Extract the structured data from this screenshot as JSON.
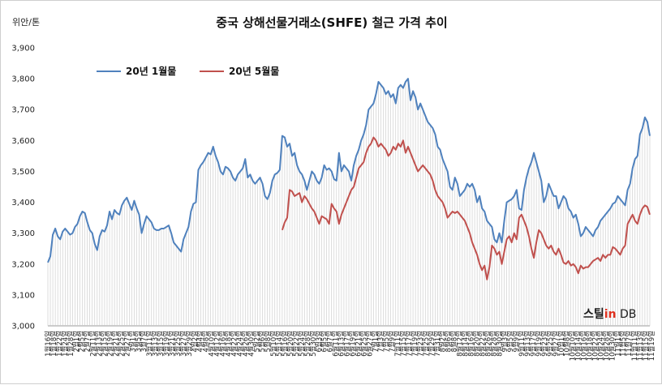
{
  "chart_data": {
    "type": "line",
    "title": "중국 상해선물거래소(SHFE)  철근 가격 추이",
    "unit_label": "위안/톤",
    "ylim": [
      3000,
      3900
    ],
    "yticks": [
      "3,000",
      "3,100",
      "3,200",
      "3,300",
      "3,400",
      "3,500",
      "3,600",
      "3,700",
      "3,800",
      "3,900"
    ],
    "ytick_values": [
      3000,
      3100,
      3200,
      3300,
      3400,
      3500,
      3600,
      3700,
      3800,
      3900
    ],
    "legend_position": "top-left",
    "x_suffix": "일",
    "x_labels": [
      "1월16",
      "1월18",
      "1월22",
      "1월24",
      "1월28",
      "2월1",
      "2월5",
      "2월7",
      "2월11",
      "2월13",
      "2월15",
      "2월19",
      "2월21",
      "2월25",
      "2월27",
      "3월1",
      "3월5",
      "3월7",
      "3월11",
      "3월13",
      "3월15",
      "3월19",
      "3월21",
      "3월25",
      "3월27",
      "3월29",
      "4월2",
      "4월4",
      "4월8",
      "4월10",
      "4월12",
      "4월16",
      "4월18",
      "4월22",
      "4월24",
      "4월26",
      "4월30",
      "5월2",
      "5월6",
      "5월8",
      "5월10",
      "5월14",
      "5월16",
      "5월20",
      "5월22",
      "5월24",
      "5월28",
      "5월30",
      "6월3",
      "6월5",
      "6월7",
      "6월11",
      "6월13",
      "6월17",
      "6월19",
      "6월21",
      "6월25",
      "6월27",
      "7월1",
      "7월3",
      "7월5",
      "7월9",
      "7월11",
      "7월15",
      "7월17",
      "7월19",
      "7월23",
      "7월25",
      "7월29",
      "7월31",
      "8월2",
      "8월6",
      "8월8",
      "8월12",
      "8월14",
      "8월16",
      "8월20",
      "8월22",
      "8월26",
      "8월28",
      "8월30",
      "9월3",
      "9월5",
      "9월9",
      "9월11",
      "9월13",
      "9월17",
      "9월19",
      "9월23",
      "9월25",
      "9월27",
      "10월1",
      "10월8",
      "10월10",
      "10월14",
      "10월16",
      "10월18",
      "10월22",
      "10월24",
      "10월28",
      "10월30",
      "11월1",
      "11월5",
      "11월7",
      "11월11",
      "11월13",
      "11월15",
      "11월19"
    ],
    "x_label_count_shown": 108,
    "series": [
      {
        "name": "20년 1월물",
        "color": "#4f81bd",
        "values": [
          3205,
          3225,
          3295,
          3315,
          3290,
          3280,
          3305,
          3315,
          3305,
          3295,
          3300,
          3320,
          3330,
          3355,
          3370,
          3365,
          3335,
          3310,
          3300,
          3265,
          3245,
          3290,
          3310,
          3305,
          3325,
          3370,
          3345,
          3375,
          3365,
          3360,
          3390,
          3405,
          3415,
          3395,
          3375,
          3405,
          3380,
          3360,
          3300,
          3330,
          3355,
          3345,
          3335,
          3315,
          3310,
          3310,
          3315,
          3315,
          3320,
          3325,
          3300,
          3270,
          3260,
          3250,
          3240,
          3280,
          3300,
          3320,
          3370,
          3395,
          3400,
          3505,
          3520,
          3530,
          3545,
          3560,
          3555,
          3580,
          3550,
          3530,
          3500,
          3490,
          3515,
          3510,
          3500,
          3480,
          3470,
          3490,
          3500,
          3510,
          3540,
          3480,
          3490,
          3470,
          3460,
          3470,
          3480,
          3460,
          3420,
          3410,
          3430,
          3470,
          3490,
          3495,
          3505,
          3615,
          3610,
          3580,
          3590,
          3550,
          3560,
          3520,
          3500,
          3490,
          3470,
          3440,
          3470,
          3500,
          3490,
          3470,
          3460,
          3480,
          3520,
          3505,
          3510,
          3500,
          3475,
          3470,
          3560,
          3500,
          3520,
          3510,
          3500,
          3470,
          3520,
          3550,
          3570,
          3600,
          3620,
          3650,
          3700,
          3710,
          3720,
          3750,
          3790,
          3780,
          3770,
          3750,
          3760,
          3740,
          3750,
          3720,
          3770,
          3780,
          3770,
          3790,
          3800,
          3730,
          3760,
          3740,
          3700,
          3720,
          3700,
          3680,
          3660,
          3650,
          3640,
          3620,
          3580,
          3570,
          3540,
          3520,
          3500,
          3450,
          3440,
          3480,
          3460,
          3420,
          3430,
          3440,
          3460,
          3450,
          3460,
          3440,
          3400,
          3420,
          3380,
          3370,
          3340,
          3330,
          3320,
          3280,
          3270,
          3300,
          3270,
          3340,
          3400,
          3405,
          3410,
          3420,
          3440,
          3380,
          3375,
          3440,
          3480,
          3510,
          3530,
          3560,
          3530,
          3500,
          3470,
          3400,
          3420,
          3460,
          3440,
          3420,
          3420,
          3380,
          3400,
          3420,
          3410,
          3380,
          3370,
          3350,
          3360,
          3330,
          3290,
          3300,
          3320,
          3310,
          3300,
          3290,
          3310,
          3320,
          3340,
          3350,
          3360,
          3370,
          3380,
          3395,
          3400,
          3420,
          3410,
          3400,
          3390,
          3440,
          3460,
          3510,
          3540,
          3550,
          3620,
          3640,
          3675,
          3660,
          3615
        ]
      },
      {
        "name": "20년 5월물",
        "color": "#c0504d",
        "values": [
          3310,
          3335,
          3350,
          3440,
          3435,
          3420,
          3425,
          3430,
          3400,
          3420,
          3410,
          3395,
          3380,
          3370,
          3350,
          3330,
          3355,
          3350,
          3345,
          3330,
          3395,
          3380,
          3370,
          3330,
          3360,
          3380,
          3400,
          3420,
          3440,
          3450,
          3480,
          3510,
          3520,
          3530,
          3560,
          3580,
          3590,
          3610,
          3600,
          3580,
          3590,
          3580,
          3570,
          3550,
          3560,
          3580,
          3570,
          3590,
          3580,
          3600,
          3560,
          3580,
          3560,
          3540,
          3520,
          3500,
          3510,
          3520,
          3510,
          3500,
          3490,
          3470,
          3440,
          3420,
          3410,
          3400,
          3380,
          3350,
          3360,
          3370,
          3365,
          3370,
          3360,
          3350,
          3340,
          3320,
          3300,
          3270,
          3250,
          3230,
          3200,
          3180,
          3195,
          3150,
          3190,
          3260,
          3250,
          3230,
          3240,
          3200,
          3240,
          3280,
          3290,
          3270,
          3300,
          3280,
          3350,
          3360,
          3340,
          3320,
          3290,
          3250,
          3220,
          3270,
          3310,
          3300,
          3280,
          3260,
          3250,
          3260,
          3240,
          3230,
          3250,
          3230,
          3205,
          3200,
          3210,
          3195,
          3200,
          3190,
          3170,
          3195,
          3185,
          3190,
          3190,
          3200,
          3210,
          3215,
          3220,
          3210,
          3230,
          3220,
          3230,
          3230,
          3255,
          3250,
          3240,
          3230,
          3250,
          3260,
          3330,
          3345,
          3360,
          3340,
          3330,
          3360,
          3380,
          3390,
          3385,
          3360
        ]
      }
    ]
  },
  "logo": {
    "part1": "스틸",
    "part2": "in",
    "part3": " DB"
  }
}
